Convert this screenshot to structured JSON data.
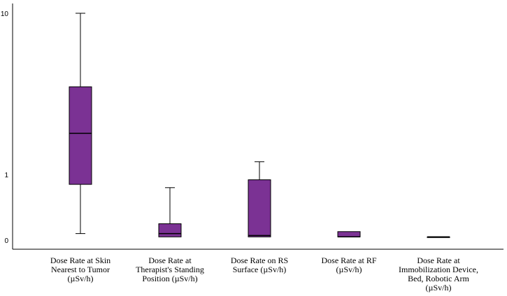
{
  "chart_data": {
    "type": "box",
    "title": "",
    "xlabel": "",
    "ylabel": "",
    "y_scale": "log-like",
    "y_ticks": [
      {
        "value": 10,
        "label": "10"
      },
      {
        "value": 1,
        "label": "1"
      },
      {
        "value": 0,
        "label": "0"
      }
    ],
    "grid": false,
    "box_color": "#7B3294",
    "categories": [
      {
        "lines": [
          "Dose Rate at Skin",
          "Nearest to Tumor",
          "(µSv/h)"
        ]
      },
      {
        "lines": [
          "Dose Rate at",
          "Therapist's Standing",
          "Position (µSv/h)"
        ]
      },
      {
        "lines": [
          "Dose Rate on RS",
          "Surface (µSv/h)"
        ]
      },
      {
        "lines": [
          "Dose Rate at RF",
          "(µSv/h)"
        ]
      },
      {
        "lines": [
          "Dose Rate at",
          "Immobilization Device,",
          "Bed, Robotic Arm",
          "(µSv/h)"
        ]
      }
    ],
    "boxes": [
      {
        "min": 0.1,
        "q1": 0.85,
        "median": 1.8,
        "q3": 3.5,
        "max": 10
      },
      {
        "min": 0.05,
        "q1": 0.05,
        "median": 0.1,
        "q3": 0.25,
        "max": 0.8
      },
      {
        "min": 0.05,
        "q1": 0.05,
        "median": 0.07,
        "q3": 0.92,
        "max": 1.2
      },
      {
        "min": 0.05,
        "q1": 0.05,
        "median": 0.05,
        "q3": 0.13,
        "max": 0.13
      },
      {
        "min": 0.05,
        "q1": 0.05,
        "median": 0.05,
        "q3": 0.05,
        "max": 0.05
      }
    ]
  }
}
